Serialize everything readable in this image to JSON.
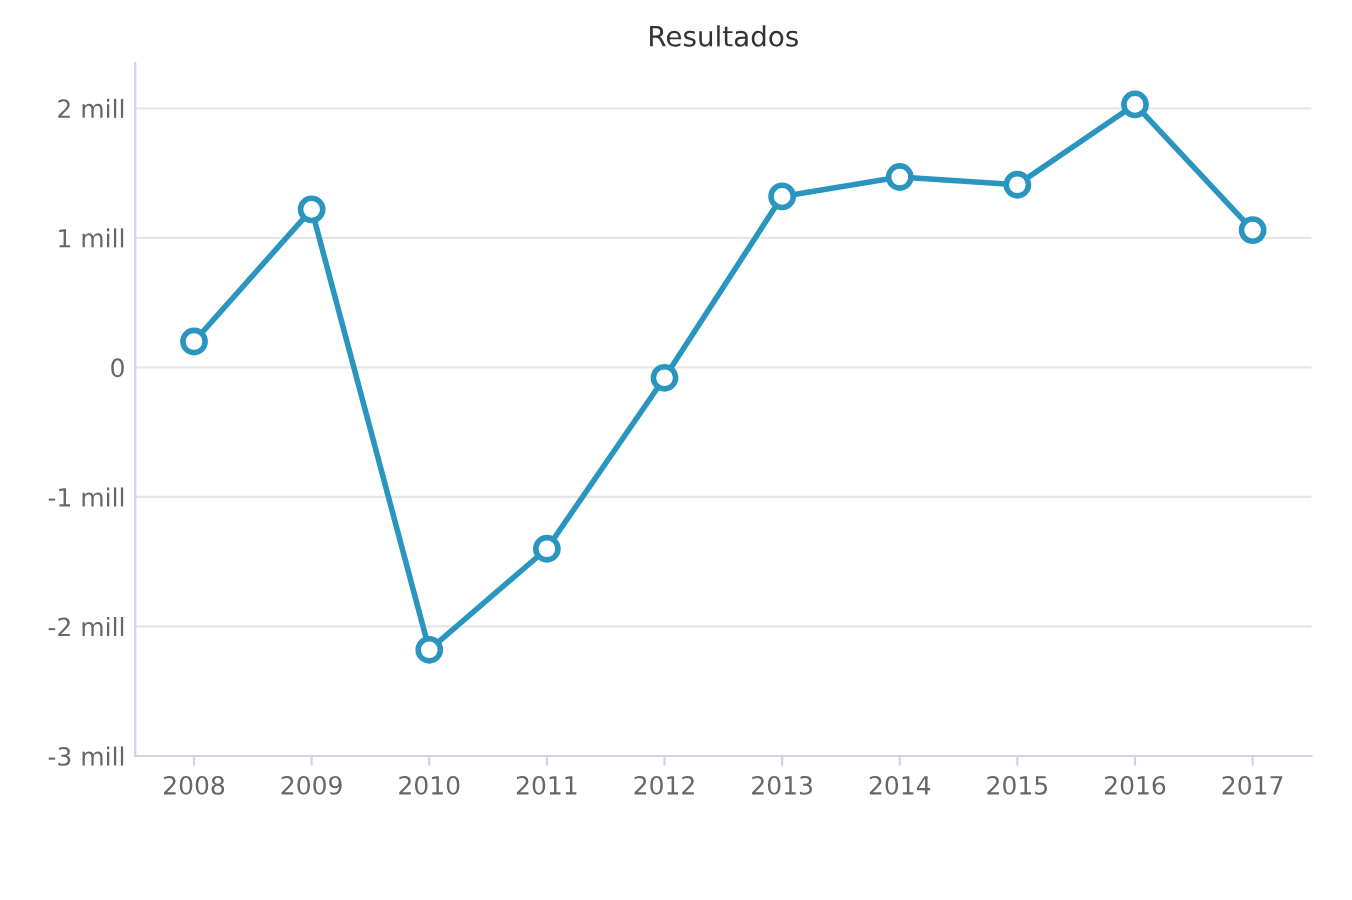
{
  "chart_data": {
    "type": "line",
    "title": "Resultados",
    "categories": [
      "2008",
      "2009",
      "2010",
      "2011",
      "2012",
      "2013",
      "2014",
      "2015",
      "2016",
      "2017"
    ],
    "series": [
      {
        "color": "#2a96c0",
        "values": [
          0.2,
          1.22,
          -2.18,
          -1.4,
          -0.08,
          1.32,
          1.47,
          1.41,
          2.03,
          1.06
        ]
      }
    ],
    "ylim": [
      -3,
      2.35
    ],
    "yticks": [
      {
        "value": -3,
        "label": "-3 mill"
      },
      {
        "value": -2,
        "label": "-2 mill"
      },
      {
        "value": -1,
        "label": "-1 mill"
      },
      0,
      {
        "value": 1,
        "label": "1 mill"
      },
      {
        "value": 2,
        "label": "2 mill"
      }
    ],
    "grid": "y",
    "marker": "circle",
    "line_style": "solid"
  }
}
